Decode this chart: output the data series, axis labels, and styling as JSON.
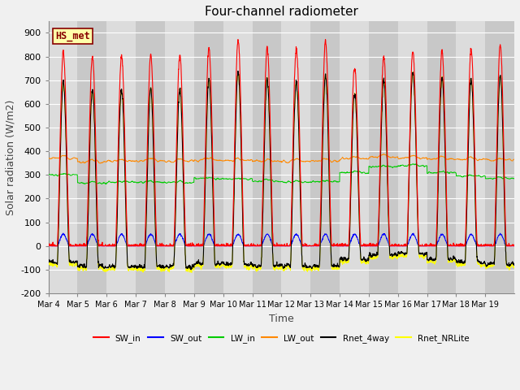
{
  "title": "Four-channel radiometer",
  "xlabel": "Time",
  "ylabel": "Solar radiation (W/m2)",
  "ylim": [
    -200,
    950
  ],
  "yticks": [
    -200,
    -100,
    0,
    100,
    200,
    300,
    400,
    500,
    600,
    700,
    800,
    900
  ],
  "n_days": 16,
  "xtick_labels": [
    "Mar 4",
    "Mar 5",
    "Mar 6",
    "Mar 7",
    "Mar 8",
    "Mar 9",
    "Mar 10",
    "Mar 11",
    "Mar 12",
    "Mar 13",
    "Mar 14",
    "Mar 15",
    "Mar 16",
    "Mar 17",
    "Mar 18",
    "Mar 19"
  ],
  "colors": {
    "SW_in": "#ff0000",
    "SW_out": "#0000ff",
    "LW_in": "#00cc00",
    "LW_out": "#ff8800",
    "Rnet_4way": "#000000",
    "Rnet_NRLite": "#ffff00"
  },
  "legend_label": "HS_met",
  "legend_box_facecolor": "#ffffaa",
  "legend_box_edgecolor": "#880000",
  "plot_bg_light": "#dcdcdc",
  "plot_bg_dark": "#c8c8c8",
  "grid_color": "#ffffff",
  "fig_bg": "#f0f0f0",
  "title_fontsize": 11,
  "axis_fontsize": 9,
  "tick_fontsize": 8
}
